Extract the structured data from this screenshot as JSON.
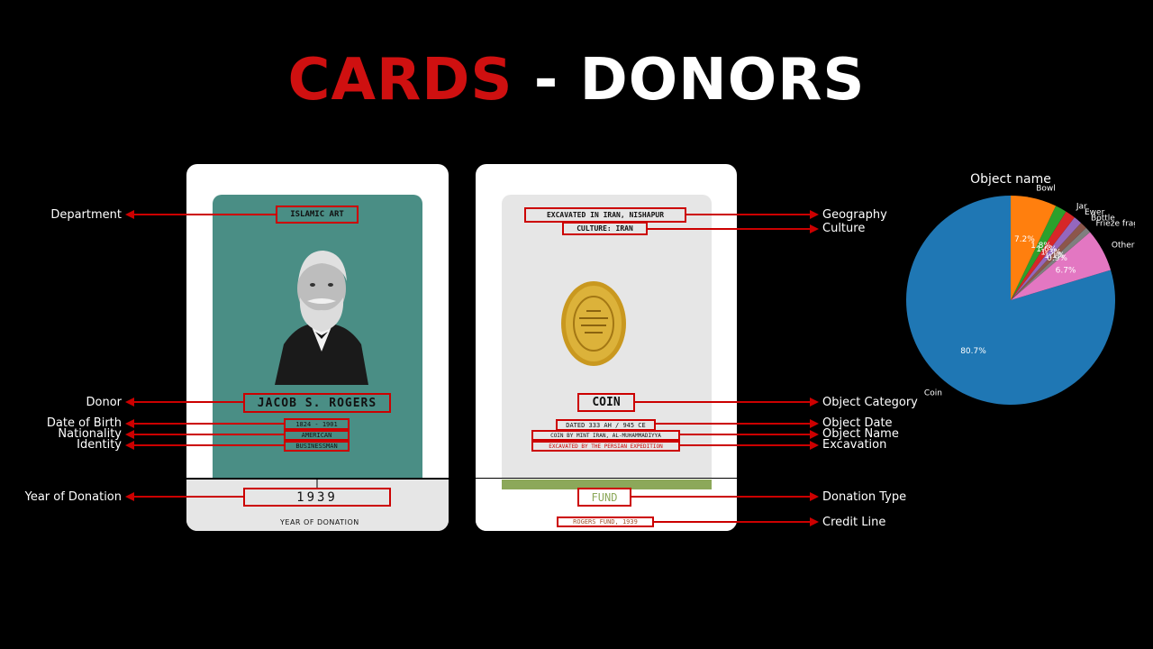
{
  "title": {
    "part1": "CARDS",
    "part2": " - DONORS"
  },
  "left_card": {
    "department": "ISLAMIC ART",
    "donor": "JACOB S. ROGERS",
    "birth": "1824 - 1901",
    "nationality": "AMERICAN",
    "identity": "BUSINESSMAN",
    "year": "1939",
    "year_caption": "YEAR OF DONATION"
  },
  "right_card": {
    "geography": "EXCAVATED IN IRAN, NISHAPUR",
    "culture": "CULTURE: IRAN",
    "category": "COIN",
    "date": "DATED 333 AH / 945 CE",
    "name": "COIN BY MINT IRAN, AL-MUHAMMADIYYA",
    "excavation": "EXCAVATED BY THE PERSIAN EXPEDITION",
    "fund": "FUND",
    "credit": "ROGERS FUND, 1939"
  },
  "labels_left": {
    "department": "Department",
    "donor": "Donor",
    "birth": "Date of Birth",
    "nationality": "Nationality",
    "identity": "Identity",
    "year": "Year of Donation"
  },
  "labels_right": {
    "geography": "Geography",
    "culture": "Culture",
    "category": "Object Category",
    "date": "Object Date",
    "name": "Object Name",
    "excavation": "Excavation",
    "donation_type": "Donation Type",
    "credit": "Credit Line"
  },
  "colors": {
    "accent_red": "#cf1010",
    "teal": "#4a8e85",
    "fund_green": "#8ca85a",
    "gold": "#d4a82a"
  },
  "chart_data": {
    "type": "pie",
    "title": "Object name",
    "slices": [
      {
        "label": "Coin",
        "value": 80.7,
        "pct_label": "80.7%",
        "color": "#1f77b4"
      },
      {
        "label": "Others",
        "value": 6.7,
        "pct_label": "6.7%",
        "color": "#e377c2"
      },
      {
        "label": "Frieze fragment",
        "value": 0.9,
        "pct_label": "0.9%",
        "color": "#7f7f7f"
      },
      {
        "label": "Bottle",
        "value": 1.1,
        "pct_label": "1.1%",
        "color": "#8c564b"
      },
      {
        "label": "Ewer",
        "value": 1.3,
        "pct_label": "1.3%",
        "color": "#9467bd"
      },
      {
        "label": "Jar",
        "value": 1.6,
        "pct_label": "1.6%",
        "color": "#d62728"
      },
      {
        "label": "",
        "value": 1.8,
        "pct_label": "1.8%",
        "color": "#2ca02c"
      },
      {
        "label": "Bowl",
        "value": 7.2,
        "pct_label": "7.2%",
        "color": "#ff7f0e"
      }
    ]
  }
}
